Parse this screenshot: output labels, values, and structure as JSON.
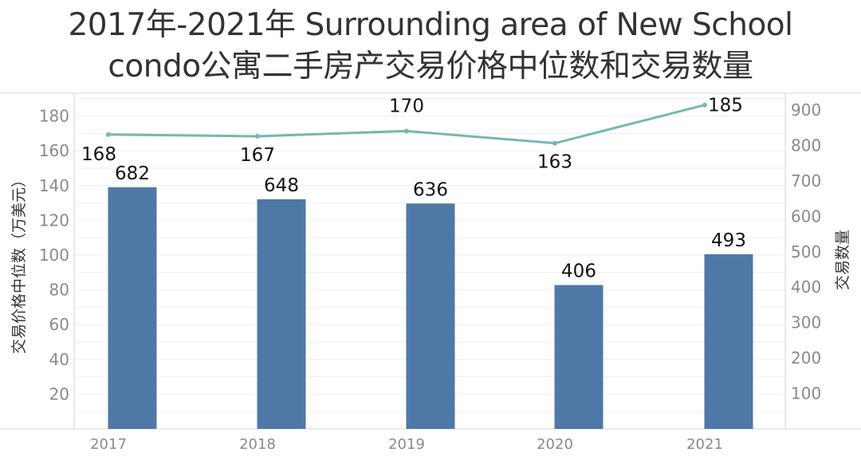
{
  "title": {
    "line1": "2017年-2021年 Surrounding area of New School",
    "line2": "condo公寓二手房产交易价格中位数和交易数量"
  },
  "colors": {
    "bar": "#4e79a7",
    "line": "#76b7b2",
    "grid": "#eeeeee",
    "axis": "#d4d4d4",
    "tick_text": "#8a8a8a",
    "label_text": "#111111"
  },
  "chart_data": {
    "type": "bar+line",
    "title": "2017年-2021年 Surrounding area of New School condo公寓二手房产交易价格中位数和交易数量",
    "categories": [
      "2017",
      "2018",
      "2019",
      "2020",
      "2021"
    ],
    "series": [
      {
        "name": "交易价格中位数（万美元）",
        "type": "line",
        "axis": "left",
        "values": [
          168,
          167,
          170,
          163,
          185
        ]
      },
      {
        "name": "交易数量",
        "type": "bar",
        "axis": "right",
        "values": [
          682,
          648,
          636,
          406,
          493
        ]
      }
    ],
    "xlabel": "",
    "ylabel_left": "交易价格中位数（万美元）",
    "ylabel_right": "交易数量",
    "left_ticks": [
      20,
      40,
      60,
      80,
      100,
      120,
      140,
      160,
      180
    ],
    "right_ticks": [
      100,
      200,
      300,
      400,
      500,
      600,
      700,
      800,
      900
    ],
    "ylim_left": [
      0,
      190
    ],
    "ylim_right": [
      0,
      950
    ],
    "grid": true,
    "legend": "none"
  }
}
